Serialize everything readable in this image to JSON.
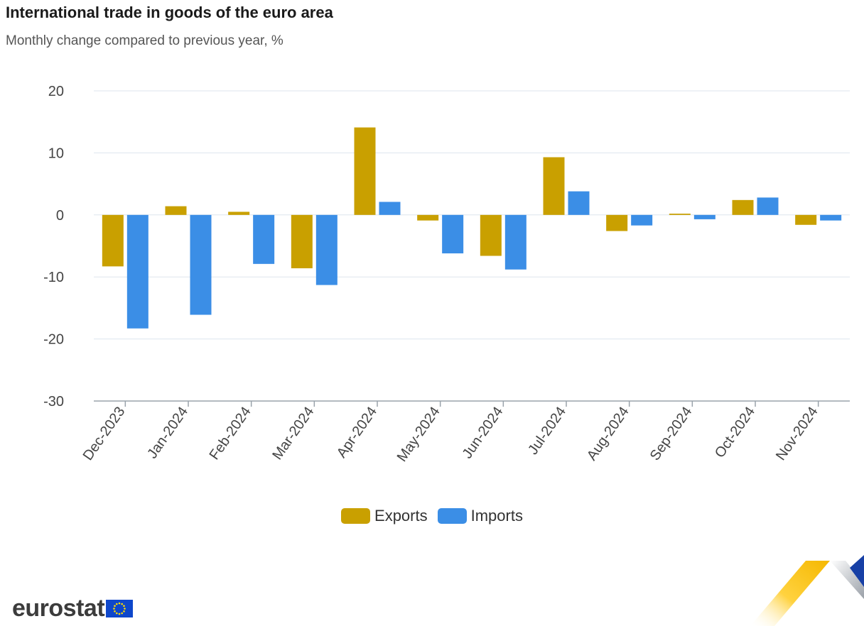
{
  "colors": {
    "exports": "#c9a000",
    "imports": "#3b8ee6",
    "grid": "#dde6ee",
    "axis": "#9aa3ab"
  },
  "chart_data": {
    "type": "bar",
    "title": "International trade in goods of the euro area",
    "subtitle": "Monthly change compared to previous year, %",
    "categories": [
      "Dec-2023",
      "Jan-2024",
      "Feb-2024",
      "Mar-2024",
      "Apr-2024",
      "May-2024",
      "Jun-2024",
      "Jul-2024",
      "Aug-2024",
      "Sep-2024",
      "Oct-2024",
      "Nov-2024"
    ],
    "series": [
      {
        "name": "Exports",
        "values": [
          -8.3,
          1.4,
          0.5,
          -8.6,
          14.1,
          -0.9,
          -6.6,
          9.3,
          -2.6,
          0.2,
          2.4,
          -1.6
        ]
      },
      {
        "name": "Imports",
        "values": [
          -18.3,
          -16.1,
          -7.9,
          -11.3,
          2.1,
          -6.2,
          -8.8,
          3.8,
          -1.7,
          -0.7,
          2.8,
          -0.9
        ]
      }
    ],
    "ylim": [
      -30,
      20
    ],
    "yticks": [
      -30,
      -20,
      -10,
      0,
      10,
      20
    ],
    "grid": true,
    "legend_position": "bottom-center"
  },
  "branding": {
    "logo_text": "eurostat"
  }
}
